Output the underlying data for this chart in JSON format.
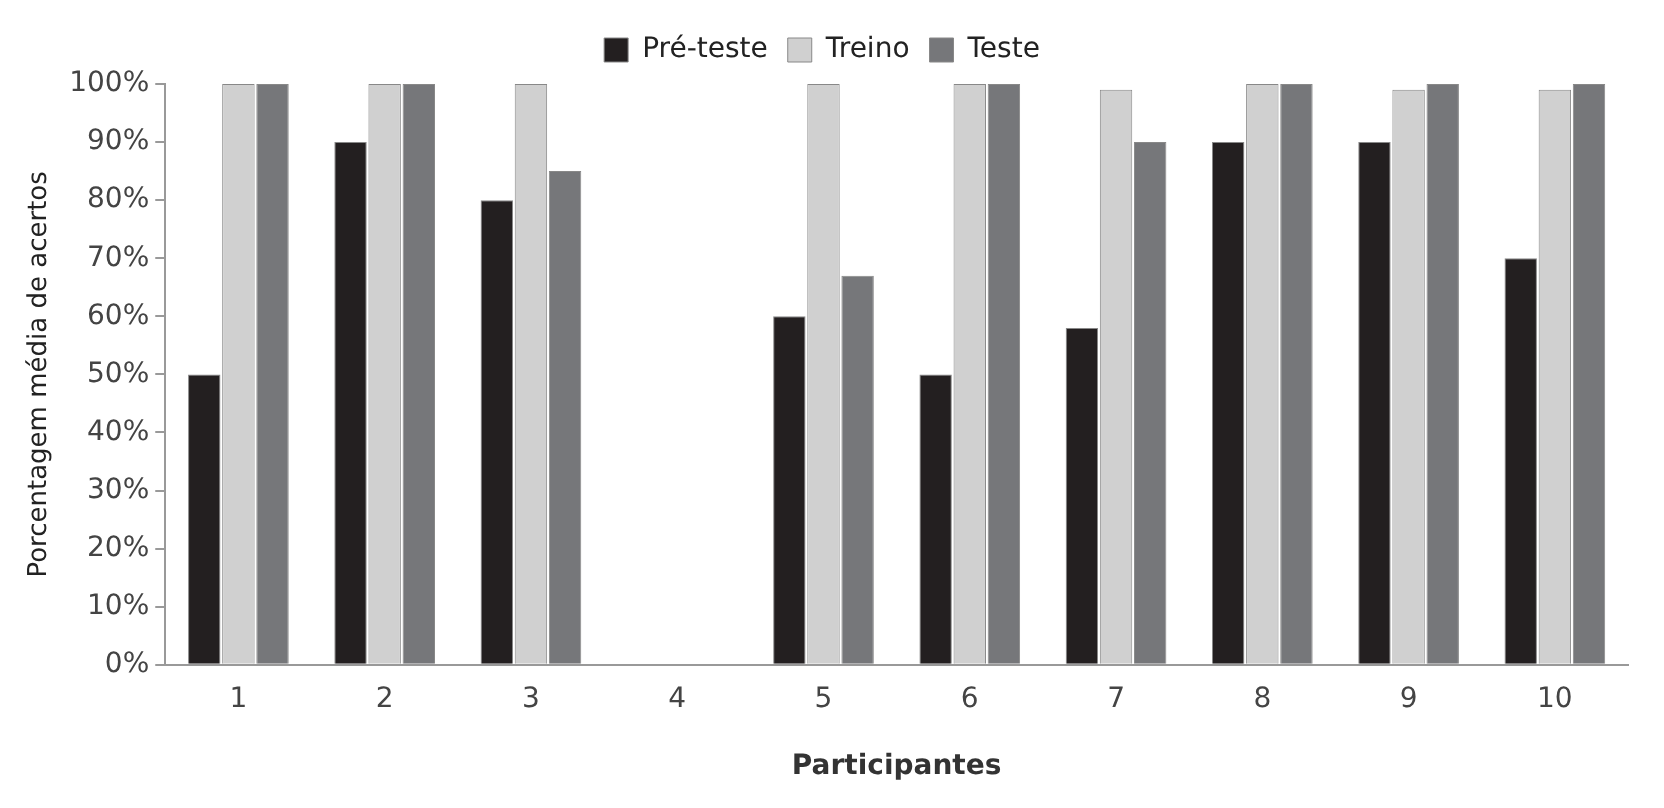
{
  "chart_data": {
    "type": "bar",
    "xlabel": "Participantes",
    "ylabel": "Porcentagem média de acertos",
    "categories": [
      "1",
      "2",
      "3",
      "4",
      "5",
      "6",
      "7",
      "8",
      "9",
      "10"
    ],
    "series": [
      {
        "name": "Pré-teste",
        "color": "#231f20",
        "values": [
          50,
          90,
          80,
          null,
          60,
          50,
          58,
          90,
          90,
          70
        ]
      },
      {
        "name": "Treino",
        "color": "#d0d0d0",
        "values": [
          100,
          100,
          100,
          null,
          100,
          100,
          99,
          100,
          99,
          99
        ]
      },
      {
        "name": "Teste",
        "color": "#76777a",
        "values": [
          100,
          100,
          85,
          null,
          67,
          100,
          90,
          100,
          100,
          100
        ]
      }
    ],
    "ylim": [
      0,
      100
    ],
    "yticks": [
      {
        "value": 0,
        "label": "0%"
      },
      {
        "value": 10,
        "label": "10%"
      },
      {
        "value": 20,
        "label": "20%"
      },
      {
        "value": 30,
        "label": "30%"
      },
      {
        "value": 40,
        "label": "40%"
      },
      {
        "value": 50,
        "label": "50%"
      },
      {
        "value": 60,
        "label": "60%"
      },
      {
        "value": 70,
        "label": "70%"
      },
      {
        "value": 80,
        "label": "80%"
      },
      {
        "value": 90,
        "label": "90%"
      },
      {
        "value": 100,
        "label": "100%"
      }
    ],
    "grid": false,
    "legend": "top"
  }
}
